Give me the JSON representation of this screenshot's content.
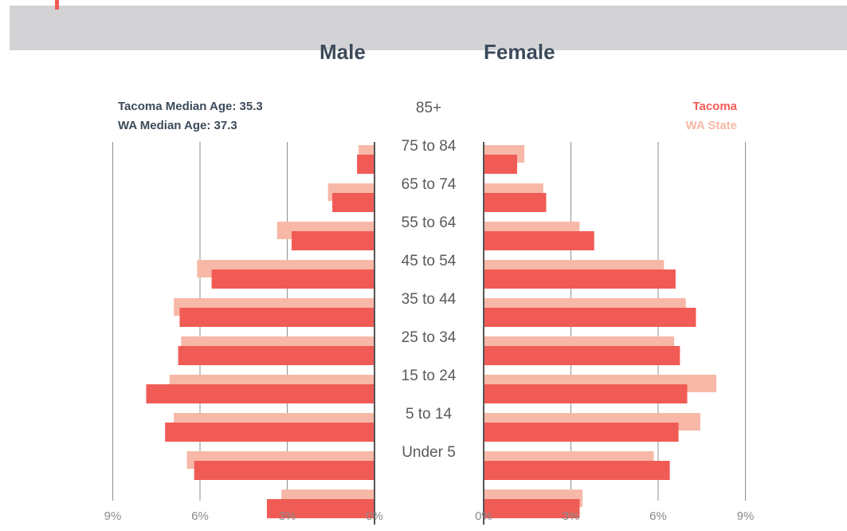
{
  "header": {
    "male_label": "Male",
    "female_label": "Female"
  },
  "annotations": {
    "tacoma_median": "Tacoma Median Age: 35.3",
    "wa_median": "WA Median Age: 37.3"
  },
  "colors": {
    "tacoma": "#f15b55",
    "wa_state": "#f8b8a7",
    "axis": "#555555",
    "grid": "#8f8f8f",
    "band": "#d3d3d5"
  },
  "chart_data": {
    "type": "bar",
    "orientation": "horizontal-population-pyramid",
    "categories": [
      "85+",
      "75 to 84",
      "65 to 74",
      "55 to 64",
      "45 to 54",
      "35 to 44",
      "25 to 34",
      "15 to 24",
      "5 to 14",
      "Under 5"
    ],
    "x_ticks": [
      "9%",
      "6%",
      "3%",
      "0%"
    ],
    "x_range_pct": [
      0,
      9
    ],
    "legend": {
      "placement": "top-right",
      "entries": [
        "Tacoma",
        "WA State"
      ]
    },
    "grid": true,
    "series": [
      {
        "name": "Tacoma",
        "side": "Male",
        "values": [
          0.6,
          1.45,
          2.85,
          5.6,
          6.7,
          6.75,
          7.85,
          7.2,
          6.2,
          3.7
        ]
      },
      {
        "name": "WA State",
        "side": "Male",
        "values": [
          0.55,
          1.6,
          3.35,
          6.1,
          6.9,
          6.65,
          7.05,
          6.9,
          6.45,
          3.2
        ]
      },
      {
        "name": "Tacoma",
        "side": "Female",
        "values": [
          1.15,
          2.15,
          3.8,
          6.6,
          7.3,
          6.75,
          7.0,
          6.7,
          6.4,
          3.3
        ]
      },
      {
        "name": "WA State",
        "side": "Female",
        "values": [
          1.4,
          2.05,
          3.3,
          6.2,
          6.95,
          6.55,
          8.0,
          7.45,
          5.85,
          3.4
        ]
      }
    ]
  }
}
